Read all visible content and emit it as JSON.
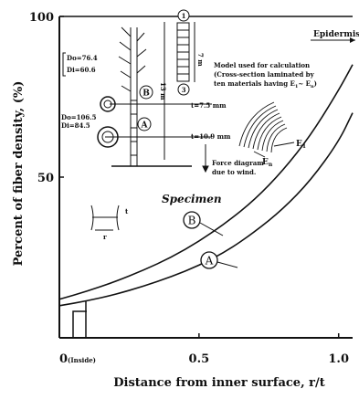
{
  "chart_data": {
    "type": "line",
    "xlabel": "Distance from inner surface,  r/t",
    "ylabel": "Percent of fiber density, (%)",
    "xlim": [
      0,
      1.05
    ],
    "ylim": [
      0,
      100
    ],
    "x_ticks": [
      {
        "value": 0,
        "label": "0",
        "suffix": "(Inside)"
      },
      {
        "value": 0.5,
        "label": "0.5",
        "suffix": ""
      },
      {
        "value": 1.0,
        "label": "1.0",
        "suffix": ""
      }
    ],
    "y_ticks": [
      {
        "value": 50,
        "label": "50"
      },
      {
        "value": 100,
        "label": "100"
      }
    ],
    "series": [
      {
        "name": "B",
        "x": [
          0.0,
          0.1,
          0.2,
          0.3,
          0.4,
          0.5,
          0.6,
          0.7,
          0.8,
          0.9,
          1.0,
          1.05
        ],
        "y": [
          12,
          14.5,
          17.5,
          21,
          25,
          30,
          36,
          43,
          52,
          63,
          77,
          85
        ]
      },
      {
        "name": "A",
        "x": [
          0.0,
          0.1,
          0.2,
          0.3,
          0.4,
          0.5,
          0.6,
          0.7,
          0.8,
          0.9,
          1.0,
          1.05
        ],
        "y": [
          10,
          11.5,
          13.5,
          16,
          19,
          22.5,
          27,
          33,
          40,
          49,
          61,
          70
        ]
      }
    ],
    "grid": false,
    "legend": "none"
  },
  "annotations": {
    "epidermis": "Epidermis",
    "specimen": "Specimen",
    "label_a": "A",
    "label_b": "B",
    "model_line1": "Model used for calculation",
    "model_line2": "(Cross-section laminated by",
    "model_line3": "ten materials having E",
    "model_line3_sub": "1",
    "model_line3_mid": "~ E",
    "model_line3_sub2": "n",
    "model_line3_end": ")",
    "force_line1": "Force diagram",
    "force_line2": "due to wind.",
    "t75": "t=7.5 mm",
    "t109": "t=10.9 mm",
    "b_dims_line1": "Do=76.4",
    "b_dims_line2": "Di=60.6",
    "a_dims_line1": "Do=106.5",
    "a_dims_line2": "Di=84.5",
    "height_13": "13 m",
    "height_7": "7 m",
    "circle_1": "1",
    "circle_3": "3",
    "e1": "E",
    "e1_sub": "1",
    "en": "E",
    "en_sub": "n",
    "inset_r": "r",
    "inset_t": "t",
    "colors": {
      "ink": "#111111",
      "background": "#ffffff"
    }
  }
}
